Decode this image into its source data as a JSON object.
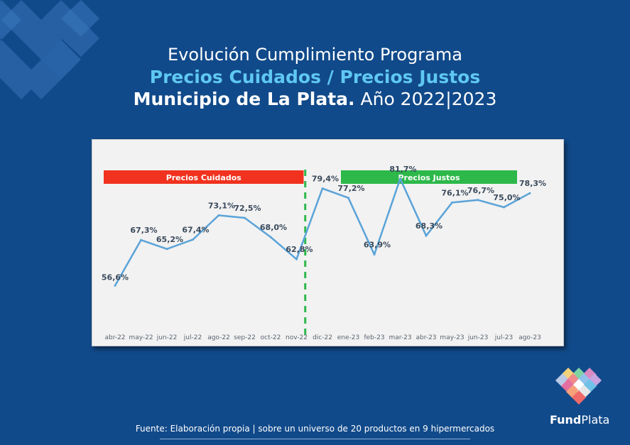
{
  "header": {
    "line1": "Evolución Cumplimiento Programa",
    "line2": "Precios Cuidados / Precios Justos",
    "line3_bold": "Municipio de La Plata.",
    "line3_normal": " Año 2022|2023"
  },
  "footer": {
    "source": "Fuente: Elaboración propia | sobre un universo de 20 productos en 9 hipermercados"
  },
  "brand": {
    "fund": "Fund",
    "plata": "Plata"
  },
  "colors": {
    "background": "#114a8a",
    "line": "#5aa3d8",
    "cuidados": "#f0321e",
    "justos": "#2db84a",
    "divider": "#2db84a",
    "label": "#3b4a5c"
  },
  "chart_data": {
    "type": "line",
    "title": "",
    "xlabel": "",
    "ylabel": "",
    "grid": false,
    "categories": [
      "abr-22",
      "may-22",
      "jun-22",
      "jul-22",
      "ago-22",
      "sep-22",
      "oct-22",
      "nov-22",
      "dic-22",
      "ene-23",
      "feb-23",
      "mar-23",
      "abr-23",
      "may-23",
      "jun-23",
      "jul-23",
      "ago-23"
    ],
    "values": [
      56.6,
      67.3,
      65.2,
      67.4,
      73.1,
      72.5,
      68.0,
      62.8,
      79.4,
      77.2,
      63.9,
      81.7,
      68.3,
      76.1,
      76.7,
      75.0,
      78.3
    ],
    "value_labels": [
      "56,6%",
      "67,3%",
      "65,2%",
      "67,4%",
      "73,1%",
      "72,5%",
      "68,0%",
      "62,8%",
      "79,4%",
      "77,2%",
      "63,9%",
      "81,7%",
      "68,3%",
      "76,1%",
      "76,7%",
      "75,0%",
      "78,3%"
    ],
    "ylim": [
      50,
      85
    ],
    "periods": [
      {
        "label": "Precios Cuidados",
        "start": "abr-22",
        "end": "nov-22"
      },
      {
        "label": "Precios Justos",
        "start": "dic-22",
        "end": "ago-23"
      }
    ],
    "divider_between": [
      "nov-22",
      "dic-22"
    ]
  }
}
